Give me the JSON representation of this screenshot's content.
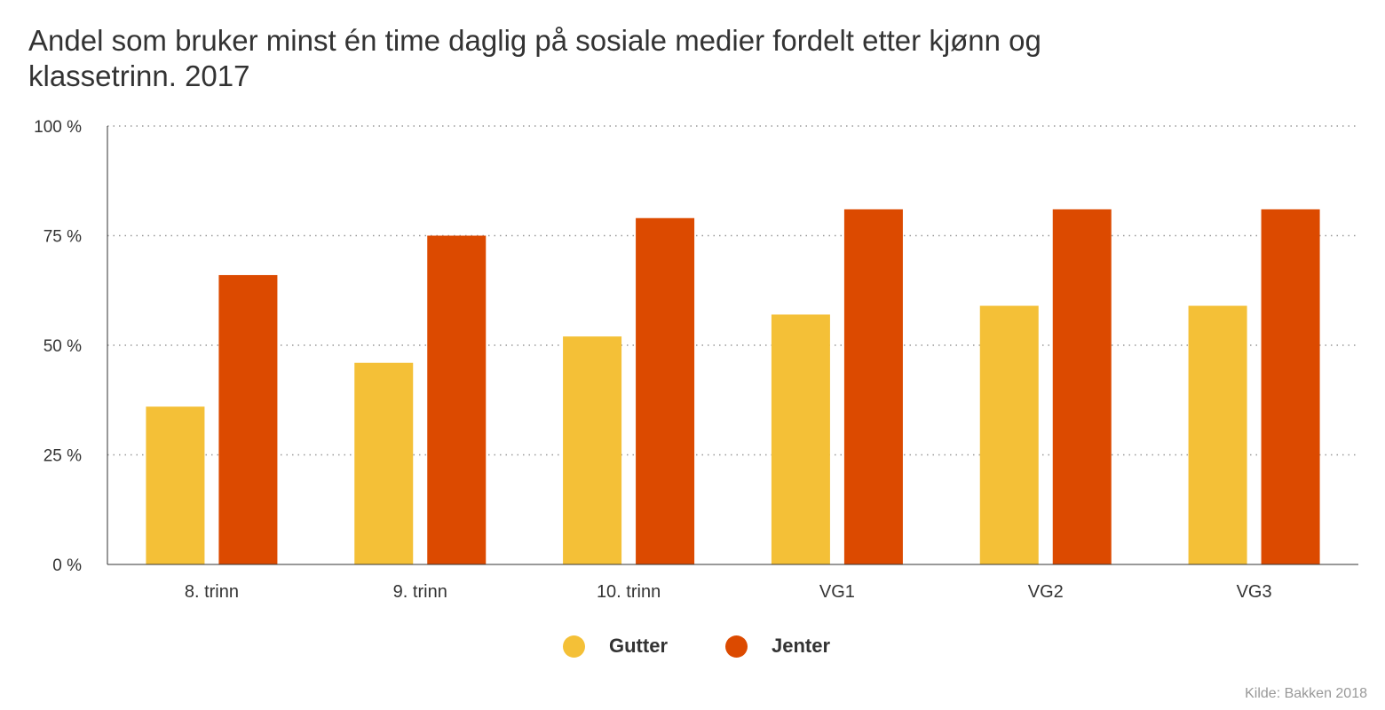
{
  "title": "Andel som bruker minst én time daglig på sosiale medier fordelt etter kjønn og klassetrinn. 2017",
  "source": "Kilde: Bakken 2018",
  "legend": {
    "series_0": "Gutter",
    "series_1": "Jenter"
  },
  "chart_data": {
    "type": "bar",
    "title": "Andel som bruker minst én time daglig på sosiale medier fordelt etter kjønn og klassetrinn. 2017",
    "xlabel": "",
    "ylabel": "",
    "categories": [
      "8. trinn",
      "9. trinn",
      "10. trinn",
      "VG1",
      "VG2",
      "VG3"
    ],
    "series": [
      {
        "name": "Gutter",
        "values": [
          36,
          46,
          52,
          57,
          59,
          59
        ],
        "color": "#f4c037"
      },
      {
        "name": "Jenter",
        "values": [
          66,
          75,
          79,
          81,
          81,
          81
        ],
        "color": "#dc4a00"
      }
    ],
    "ylim": [
      0,
      100
    ],
    "yticks": [
      0,
      25,
      50,
      75,
      100
    ],
    "ytick_labels": [
      "0 %",
      "25 %",
      "50 %",
      "75 %",
      "100 %"
    ],
    "grid": true,
    "legend_position": "bottom"
  }
}
